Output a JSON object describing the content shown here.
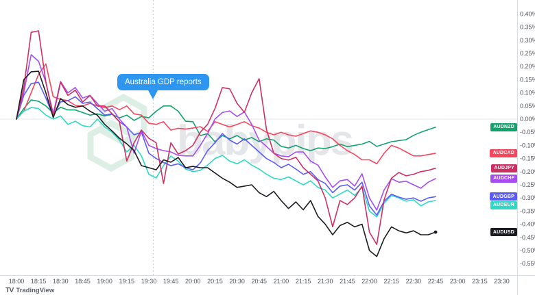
{
  "annotation": {
    "text": "Australia GDP reports",
    "time": "19:33"
  },
  "logo": {
    "mark": "TV",
    "text": "TradingView"
  },
  "watermark": {
    "text": "babypips"
  },
  "colors": {
    "annotation_bg": "#2d96f0",
    "axis_line": "#d7dadf",
    "axis_text": "#4c4f56",
    "zero_line": "#e3e5e9",
    "event_dashed": "#c5c8ce",
    "watermark_text": "#e5e6e9",
    "watermark_hex": "#ddefe4"
  },
  "y_axis": {
    "ticks": [
      "0.40%",
      "0.35%",
      "0.30%",
      "0.25%",
      "0.20%",
      "0.15%",
      "0.10%",
      "0.05%",
      "0.00%",
      "-0.05%",
      "-0.10%",
      "-0.15%",
      "-0.20%",
      "-0.25%",
      "-0.30%",
      "-0.35%",
      "-0.40%",
      "-0.45%",
      "-0.50%",
      "-0.55%"
    ],
    "values": [
      0.4,
      0.35,
      0.3,
      0.25,
      0.2,
      0.15,
      0.1,
      0.05,
      0.0,
      -0.05,
      -0.1,
      -0.15,
      -0.2,
      -0.25,
      -0.3,
      -0.35,
      -0.4,
      -0.45,
      -0.5,
      -0.55
    ]
  },
  "x_axis": {
    "ticks": [
      "18:00",
      "18:15",
      "18:30",
      "18:45",
      "19:00",
      "19:15",
      "19:30",
      "19:45",
      "20:00",
      "20:15",
      "20:30",
      "20:45",
      "21:00",
      "21:15",
      "21:30",
      "21:45",
      "22:00",
      "22:15",
      "22:30",
      "22:45",
      "23:00",
      "23:15",
      "23:30"
    ]
  },
  "chart_data": {
    "type": "line",
    "title": "",
    "unit": "percent change",
    "x_start": "18:00",
    "x_end": "22:45",
    "x_interval_min": 5,
    "ylim": [
      -0.55,
      0.4
    ],
    "grid": "zero-line-only",
    "event_line": {
      "time": "19:33",
      "label": "Australia GDP reports"
    },
    "series": [
      {
        "name": "AUDNZD",
        "color": "#12a26b",
        "values": [
          0,
          0.04,
          0.073,
          0.068,
          0.05,
          0.023,
          0.045,
          0.035,
          0.035,
          0.025,
          0.015,
          0.02,
          0.012,
          0.018,
          0.005,
          0.015,
          -0.005,
          0.01,
          0.005,
          0.03,
          0.05,
          0.05,
          0.03,
          -0.008,
          -0.01,
          -0.0625,
          -0.055,
          -0.086,
          -0.0625,
          -0.075,
          -0.0625,
          -0.08,
          -0.07,
          -0.086,
          -0.075,
          -0.08,
          -0.104,
          -0.11,
          -0.1,
          -0.112,
          -0.12,
          -0.11,
          -0.112,
          -0.105,
          -0.095,
          -0.105,
          -0.1,
          -0.095,
          -0.085,
          -0.104,
          -0.095,
          -0.086,
          -0.082,
          -0.078,
          -0.062,
          -0.05,
          -0.04,
          -0.031
        ]
      },
      {
        "name": "AUDCAD",
        "color": "#f6465d",
        "values": [
          0,
          0.03,
          0.1,
          0.17,
          0.21,
          0.085,
          0.075,
          0.07,
          0.052,
          0.05,
          0.06,
          0.05,
          0.044,
          0.05,
          0.036,
          0.05,
          0.02,
          0.015,
          -0.016,
          -0.02,
          -0.01,
          -0.042,
          -0.035,
          -0.038,
          -0.034,
          -0.029,
          -0.047,
          -0.01,
          -0.02,
          -0.03,
          -0.02,
          -0.01,
          -0.025,
          -0.034,
          -0.05,
          -0.06,
          -0.05,
          -0.06,
          -0.065,
          -0.055,
          -0.045,
          -0.05,
          -0.06,
          -0.075,
          -0.1,
          -0.12,
          -0.135,
          -0.155,
          -0.155,
          -0.17,
          -0.13,
          -0.1,
          -0.11,
          -0.125,
          -0.14,
          -0.14,
          -0.135,
          -0.13
        ]
      },
      {
        "name": "AUDEUR",
        "color": "#2cd9c5",
        "values": [
          0,
          0.03,
          0.044,
          0.04,
          0.015,
          0.0,
          0.012,
          -0.02,
          -0.008,
          -0.025,
          -0.03,
          0.0,
          -0.03,
          -0.05,
          -0.08,
          -0.125,
          -0.1,
          -0.14,
          -0.21,
          -0.224,
          -0.177,
          -0.141,
          -0.16,
          -0.19,
          -0.2,
          -0.195,
          -0.175,
          -0.15,
          -0.138,
          -0.16,
          -0.17,
          -0.155,
          -0.175,
          -0.19,
          -0.21,
          -0.225,
          -0.23,
          -0.22,
          -0.235,
          -0.25,
          -0.235,
          -0.26,
          -0.27,
          -0.3,
          -0.285,
          -0.27,
          -0.29,
          -0.26,
          -0.35,
          -0.372,
          -0.32,
          -0.29,
          -0.3,
          -0.3125,
          -0.307,
          -0.33,
          -0.315,
          -0.31
        ]
      },
      {
        "name": "AUDGBP",
        "color": "#5b5bf7",
        "values": [
          0,
          0.09,
          0.135,
          0.14,
          0.08,
          0.012,
          0.065,
          0.07,
          0.085,
          0.06,
          0.065,
          0.04,
          0.015,
          0.02,
          -0.01,
          -0.03,
          -0.06,
          -0.05,
          -0.13,
          -0.15,
          -0.165,
          -0.177,
          -0.17,
          -0.185,
          -0.193,
          -0.167,
          -0.12,
          -0.09,
          -0.055,
          -0.08,
          -0.095,
          -0.075,
          -0.1,
          -0.125,
          -0.15,
          -0.165,
          -0.185,
          -0.172,
          -0.19,
          -0.21,
          -0.2,
          -0.23,
          -0.245,
          -0.28,
          -0.255,
          -0.25,
          -0.27,
          -0.24,
          -0.33,
          -0.365,
          -0.3125,
          -0.286,
          -0.297,
          -0.305,
          -0.3,
          -0.3125,
          -0.3,
          -0.295
        ]
      },
      {
        "name": "AUDCHF",
        "color": "#a64cf0",
        "values": [
          0,
          0.1,
          0.245,
          0.22,
          0.14,
          0.02,
          0.143,
          0.1,
          0.12,
          0.08,
          0.09,
          0.06,
          0.03,
          0.04,
          0.0,
          -0.03,
          -0.13,
          -0.045,
          -0.1,
          -0.112,
          -0.12,
          -0.125,
          -0.138,
          -0.14,
          -0.14,
          -0.1,
          -0.055,
          0.0,
          0.025,
          0.031,
          0.01,
          0.027,
          -0.02,
          -0.08,
          -0.104,
          -0.13,
          -0.14,
          -0.143,
          -0.125,
          -0.125,
          -0.16,
          -0.175,
          -0.22,
          -0.26,
          -0.235,
          -0.23,
          -0.255,
          -0.208,
          -0.3,
          -0.346,
          -0.27,
          -0.2265,
          -0.24,
          -0.2365,
          -0.25,
          -0.263,
          -0.24,
          -0.2265
        ]
      },
      {
        "name": "AUDJPY",
        "color": "#ce2f63",
        "values": [
          0,
          0.12,
          0.33,
          0.336,
          0.14,
          0.01,
          0.14,
          0.09,
          0.11,
          0.065,
          0.09,
          0.05,
          0.05,
          0.02,
          -0.01,
          -0.16,
          -0.09,
          -0.042,
          -0.073,
          -0.09,
          -0.245,
          -0.09,
          -0.133,
          -0.12,
          -0.1,
          -0.05,
          -0.02,
          0.04,
          0.12,
          0.115,
          0.06,
          0.026,
          0.1,
          0.154,
          -0.04,
          -0.13,
          -0.15,
          -0.156,
          -0.145,
          -0.185,
          -0.21,
          -0.235,
          -0.3,
          -0.41,
          -0.31,
          -0.325,
          -0.3,
          -0.255,
          -0.43,
          -0.477,
          -0.307,
          -0.225,
          -0.203,
          -0.216,
          -0.21,
          -0.2,
          -0.195,
          -0.187
        ]
      },
      {
        "name": "AUDUSD",
        "color": "#1b1c22",
        "end_marker": true,
        "values": [
          0,
          0.15,
          0.18,
          0.182,
          0.1,
          0.006,
          0.078,
          0.055,
          0.045,
          0.05,
          0.03,
          0.015,
          -0.02,
          -0.045,
          -0.073,
          -0.094,
          -0.12,
          -0.177,
          -0.185,
          -0.193,
          -0.155,
          -0.164,
          -0.146,
          -0.185,
          -0.18,
          -0.185,
          -0.185,
          -0.205,
          -0.225,
          -0.24,
          -0.26,
          -0.255,
          -0.25,
          -0.28,
          -0.295,
          -0.275,
          -0.31,
          -0.34,
          -0.315,
          -0.345,
          -0.31,
          -0.37,
          -0.4,
          -0.44,
          -0.405,
          -0.393,
          -0.41,
          -0.4,
          -0.5,
          -0.523,
          -0.455,
          -0.41,
          -0.425,
          -0.433,
          -0.425,
          -0.44,
          -0.44,
          -0.43
        ]
      }
    ],
    "legend_position": "right-edge-price-flags"
  }
}
